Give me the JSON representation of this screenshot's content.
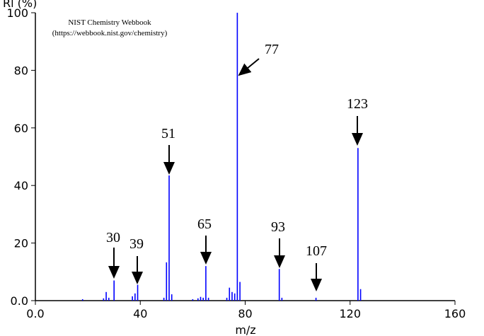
{
  "chart_data": {
    "type": "bar",
    "ylabel": "Rl (%)",
    "xlabel": "m/z",
    "notes": [
      "NIST Chemistry Webbook",
      "(https://webbook.nist.gov/chemistry)"
    ],
    "annotations": [
      "30",
      "39",
      "51",
      "65",
      "77",
      "93",
      "107",
      "123"
    ],
    "color": "#0000ff",
    "x": [
      18,
      26,
      27,
      28,
      30,
      37,
      38,
      39,
      49,
      50,
      51,
      52,
      60,
      62,
      63,
      64,
      65,
      66,
      73,
      74,
      75,
      76,
      77,
      78,
      93,
      94,
      107,
      123,
      124
    ],
    "values": [
      0.5,
      0.8,
      3,
      1,
      7,
      1.5,
      2.5,
      5.5,
      1,
      13.3,
      43.5,
      2.2,
      0.5,
      0.8,
      1.3,
      1,
      12,
      1,
      1,
      4.5,
      3,
      2.5,
      100,
      6.5,
      11,
      1,
      1,
      53,
      4
    ],
    "xlim": [
      0,
      160
    ],
    "ylim": [
      0,
      100
    ],
    "xticks": [
      {
        "value": 0,
        "label": "0.0"
      },
      40,
      80,
      120,
      160
    ],
    "yticks": [
      {
        "value": 0,
        "label": "0.0"
      },
      20,
      40,
      60,
      80,
      100
    ]
  }
}
